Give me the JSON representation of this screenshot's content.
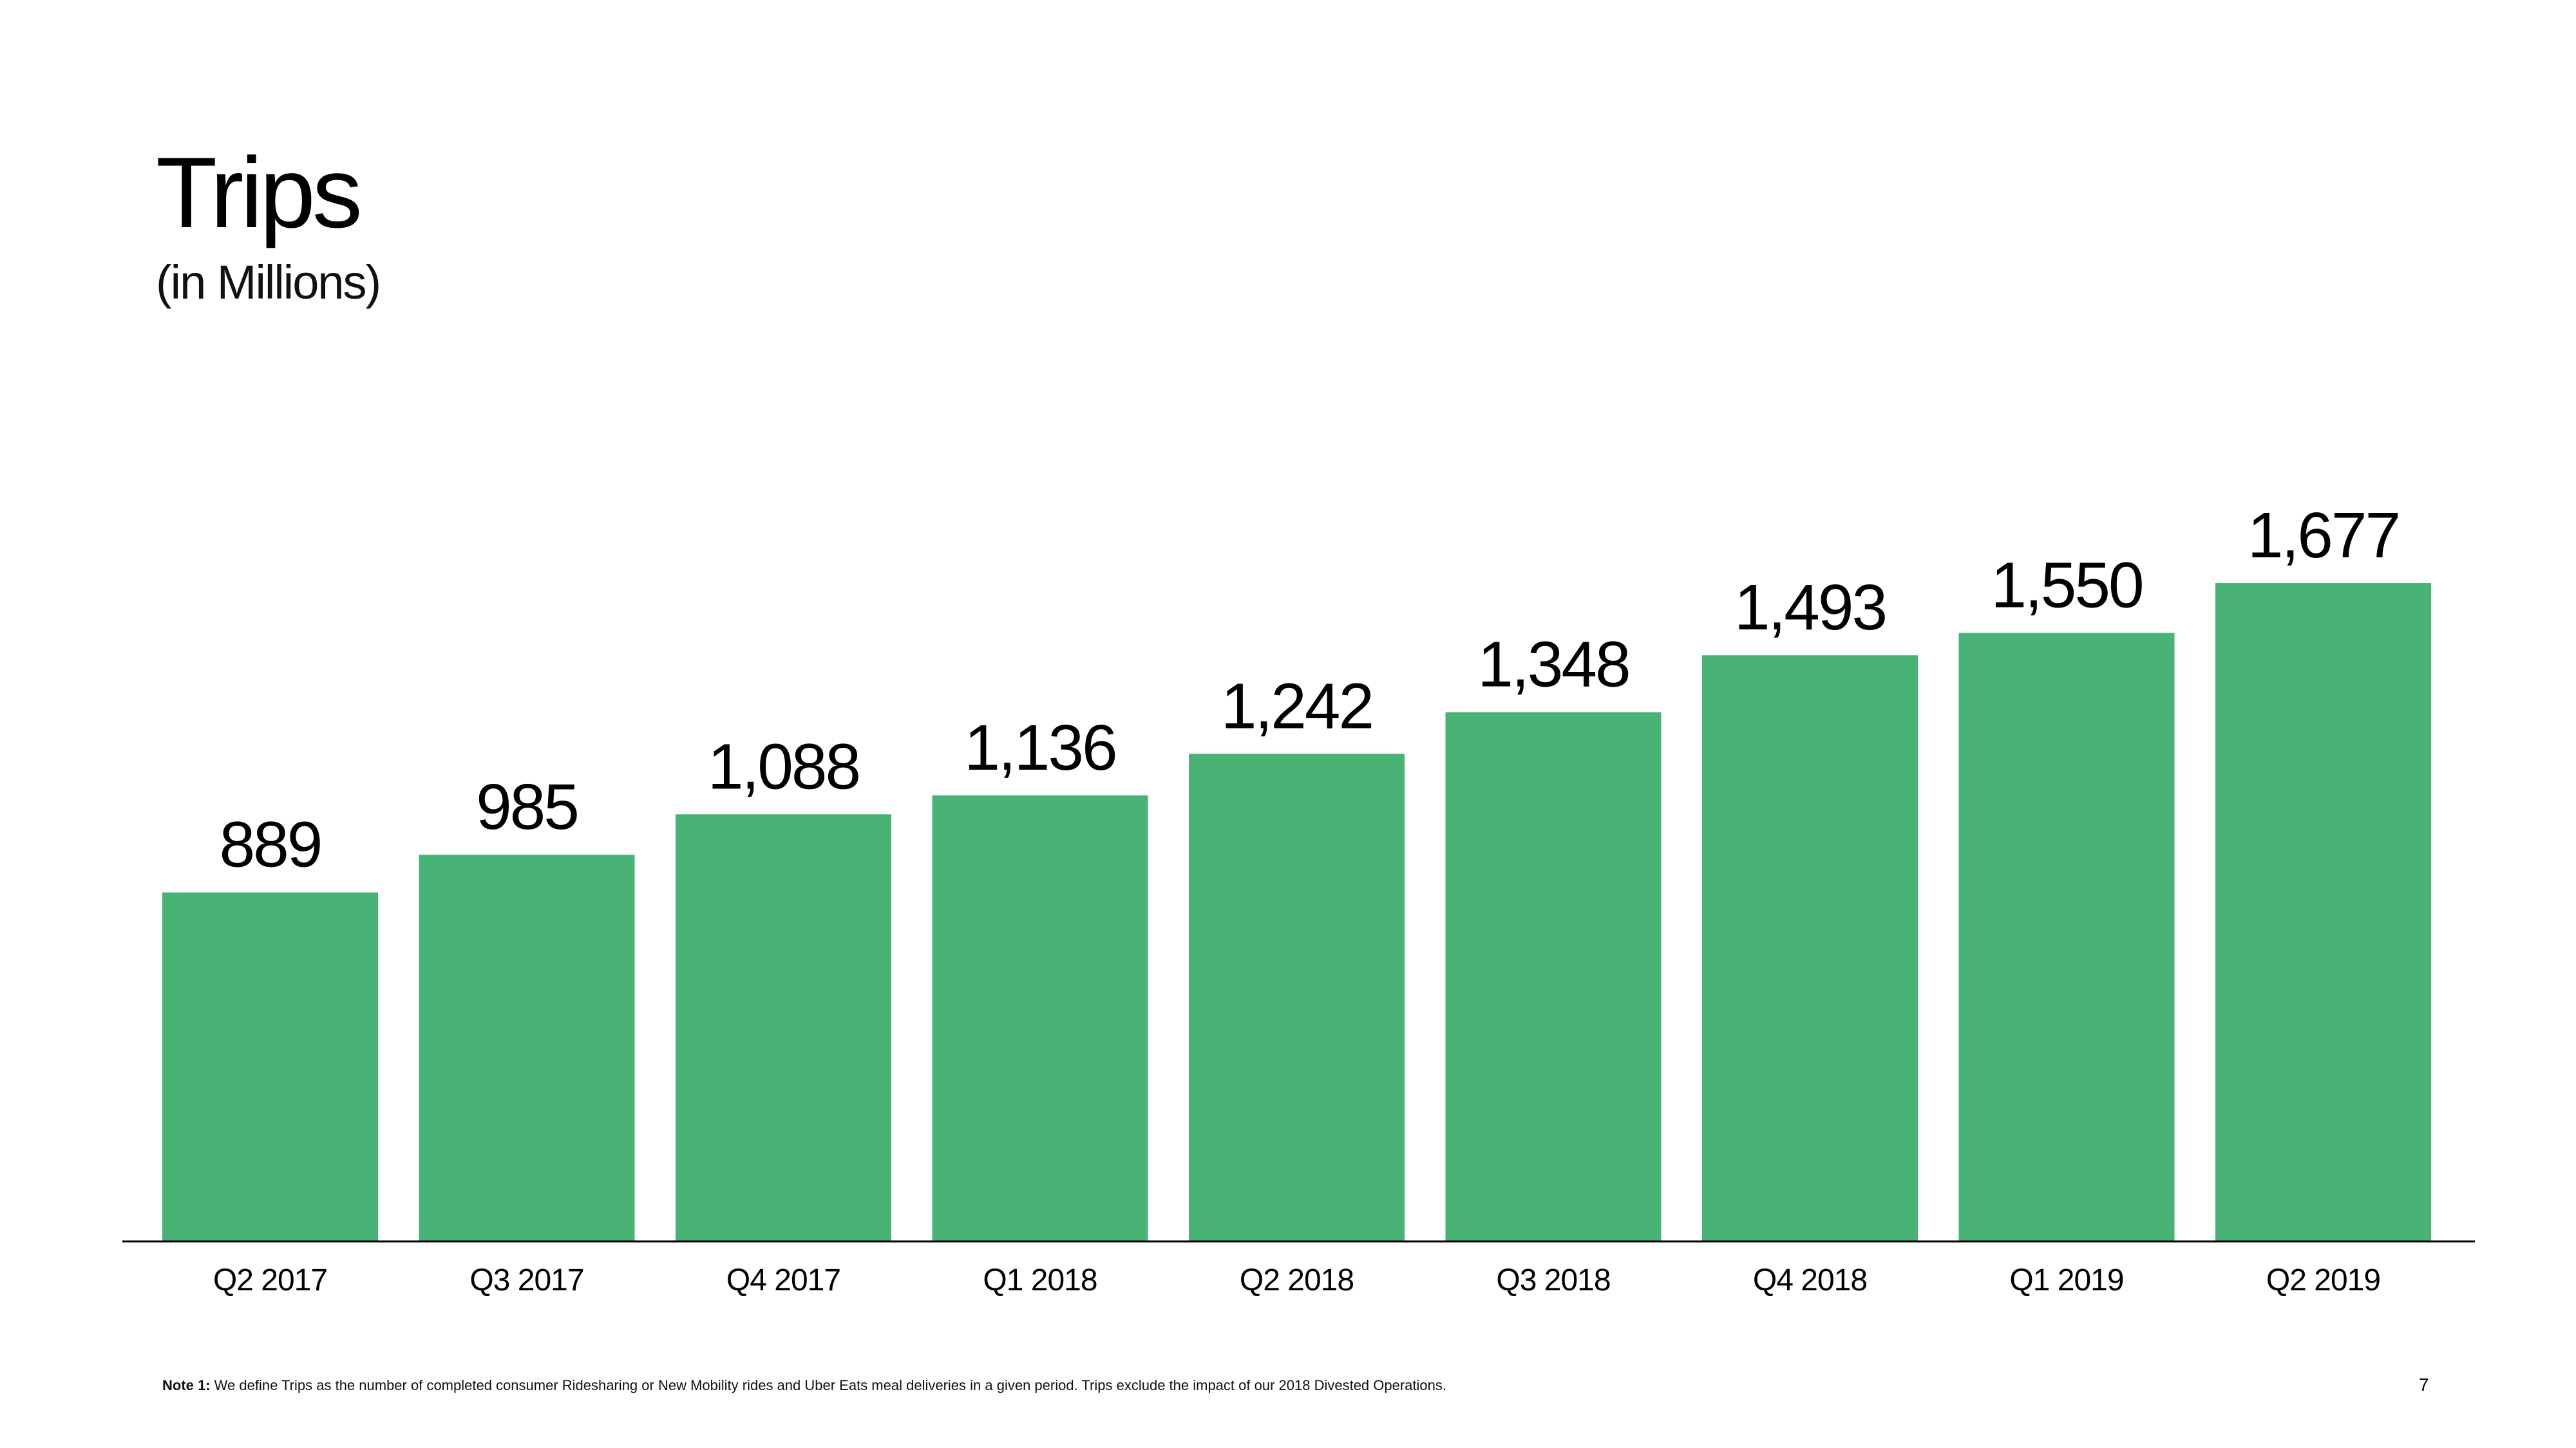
{
  "title": "Trips",
  "subtitle": "(in Millions)",
  "chart_data": {
    "type": "bar",
    "title": "Trips",
    "subtitle": "(in Millions)",
    "categories": [
      "Q2 2017",
      "Q3 2017",
      "Q4 2017",
      "Q1 2018",
      "Q2 2018",
      "Q3 2018",
      "Q4 2018",
      "Q1 2019",
      "Q2 2019"
    ],
    "values": [
      889,
      985,
      1088,
      1136,
      1242,
      1348,
      1493,
      1550,
      1677
    ],
    "value_labels": [
      "889",
      "985",
      "1,088",
      "1,136",
      "1,242",
      "1,348",
      "1,493",
      "1,550",
      "1,677"
    ],
    "xlabel": "",
    "ylabel": "",
    "ylim": [
      0,
      1677
    ],
    "grid": false,
    "legend": "none",
    "bar_color": "#48B375"
  },
  "footnote": {
    "label": "Note 1:",
    "text": " We define Trips as the number of completed consumer Ridesharing or New Mobility rides and Uber Eats meal deliveries in a given period. Trips exclude the impact of our 2018 Divested Operations."
  },
  "page_number": "7"
}
